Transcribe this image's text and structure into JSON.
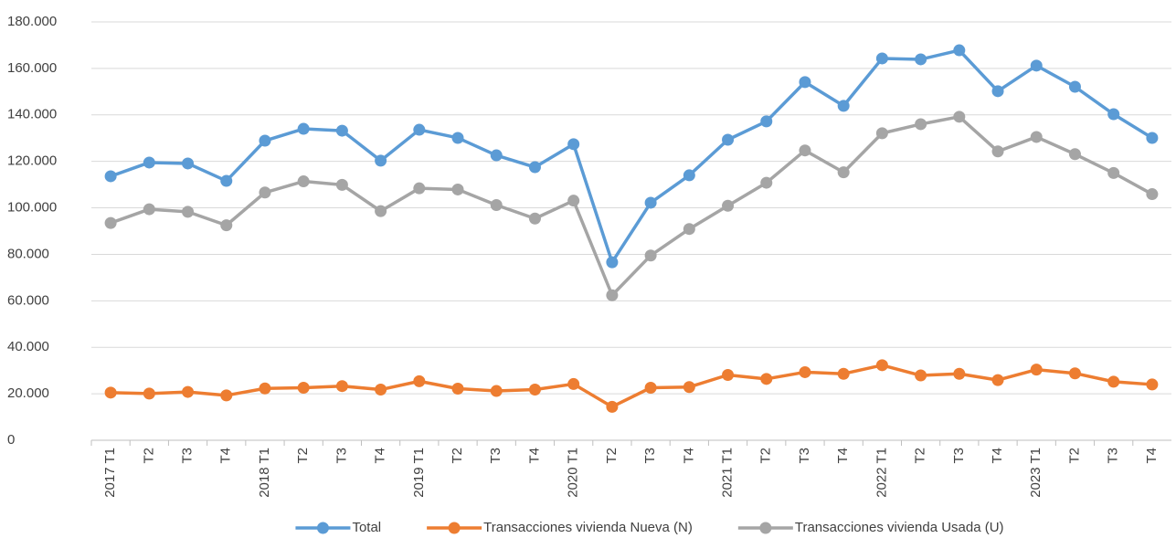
{
  "chart_data": {
    "type": "line",
    "categories": [
      "2017 T1",
      "T2",
      "T3",
      "T4",
      "2018 T1",
      "T2",
      "T3",
      "T4",
      "2019 T1",
      "T2",
      "T3",
      "T4",
      "2020 T1",
      "T2",
      "T3",
      "T4",
      "2021 T1",
      "T2",
      "T3",
      "T4",
      "2022 T1",
      "T2",
      "T3",
      "T4",
      "2023 T1",
      "T2",
      "T3",
      "T4"
    ],
    "series": [
      {
        "name": "Total",
        "color": "#5b9bd5",
        "values": [
          113600,
          119500,
          119100,
          111600,
          128900,
          134000,
          133200,
          120300,
          133600,
          130100,
          122600,
          117500,
          127400,
          76600,
          102200,
          114000,
          129300,
          137200,
          154100,
          143900,
          164300,
          163900,
          167800,
          150200,
          161200,
          152100,
          140300,
          130100
        ]
      },
      {
        "name": "Transacciones vivienda Nueva (N)",
        "color": "#ed7d31",
        "values": [
          20500,
          20100,
          20800,
          19300,
          22300,
          22600,
          23300,
          21800,
          25400,
          22200,
          21200,
          21800,
          24200,
          14400,
          22600,
          22900,
          28100,
          26400,
          29300,
          28600,
          32300,
          27900,
          28600,
          25900,
          30400,
          28800,
          25200,
          24000
        ]
      },
      {
        "name": "Transacciones vivienda Usada (U)",
        "color": "#a5a5a5",
        "values": [
          93500,
          99400,
          98300,
          92500,
          106600,
          111400,
          109900,
          98600,
          108400,
          107900,
          101200,
          95400,
          103100,
          62400,
          79500,
          90900,
          100900,
          110800,
          124700,
          115300,
          132100,
          136000,
          139200,
          124300,
          130500,
          123100,
          115000,
          105900
        ]
      }
    ],
    "ylim": [
      0,
      180000
    ],
    "yticks": [
      0,
      {
        "value": 20000,
        "label": "20.000"
      },
      {
        "value": 40000,
        "label": "40.000"
      },
      {
        "value": 60000,
        "label": "60.000"
      },
      {
        "value": 80000,
        "label": "80.000"
      },
      {
        "value": 100000,
        "label": "100.000"
      },
      {
        "value": 120000,
        "label": "120.000"
      },
      {
        "value": 140000,
        "label": "140.000"
      },
      {
        "value": 160000,
        "label": "160.000"
      },
      {
        "value": 180000,
        "label": "180.000"
      }
    ],
    "grid": true,
    "legend": "bottom"
  }
}
